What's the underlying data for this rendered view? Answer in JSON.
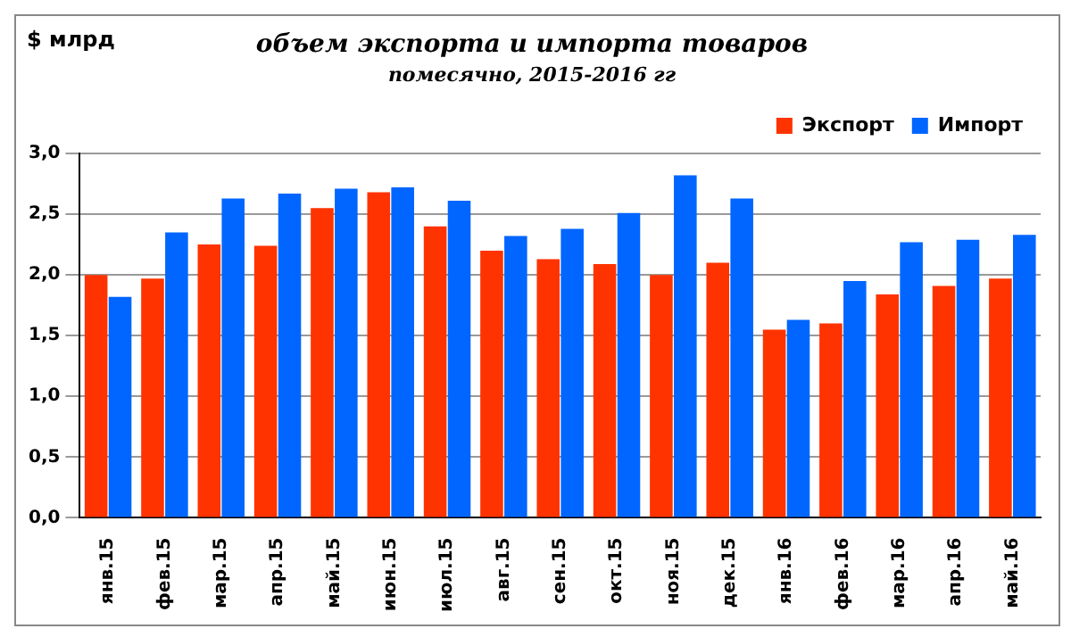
{
  "chart_data": {
    "type": "bar",
    "title": "объем экспорта и импорта товаров",
    "subtitle": "помесячно, 2015-2016 гг",
    "ylabel": "$ млрд",
    "categories": [
      "янв.15",
      "фев.15",
      "мар.15",
      "апр.15",
      "май.15",
      "июн.15",
      "июл.15",
      "авг.15",
      "сен.15",
      "окт.15",
      "ноя.15",
      "дек.15",
      "янв.16",
      "фев.16",
      "мар.16",
      "апр.16",
      "май.16"
    ],
    "series": [
      {
        "name": "Экспорт",
        "color": "#ff3300",
        "values": [
          2.0,
          1.97,
          2.25,
          2.24,
          2.55,
          2.68,
          2.4,
          2.2,
          2.13,
          2.09,
          2.0,
          2.1,
          1.55,
          1.6,
          1.84,
          1.91,
          1.97
        ]
      },
      {
        "name": "Импорт",
        "color": "#0066ff",
        "values": [
          1.82,
          2.35,
          2.63,
          2.67,
          2.71,
          2.72,
          2.61,
          2.32,
          2.38,
          2.51,
          2.82,
          2.63,
          1.63,
          1.95,
          2.27,
          2.29,
          2.33
        ]
      }
    ],
    "ylim": [
      0,
      3
    ],
    "yticks": [
      {
        "value": 0,
        "label": "0,0"
      },
      {
        "value": 0.5,
        "label": "0,5"
      },
      {
        "value": 1,
        "label": "1,0"
      },
      {
        "value": 1.5,
        "label": "1,5"
      },
      {
        "value": 2,
        "label": "2,0"
      },
      {
        "value": 2.5,
        "label": "2,5"
      },
      {
        "value": 3,
        "label": "3,0"
      }
    ],
    "grid": "y",
    "legend": "top right"
  }
}
